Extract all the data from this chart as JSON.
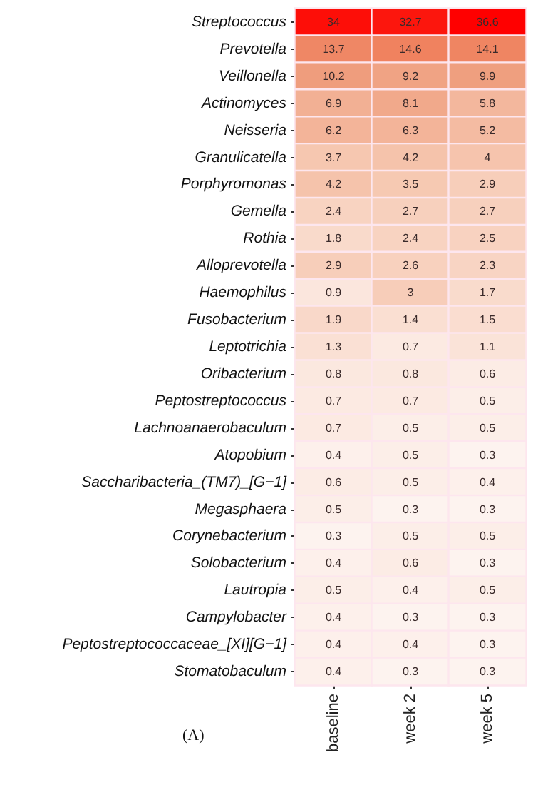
{
  "chart_data": {
    "type": "heatmap",
    "categories": [
      "baseline",
      "week 2",
      "week 5"
    ],
    "y_categories": [
      "Streptococcus",
      "Prevotella",
      "Veillonella",
      "Actinomyces",
      "Neisseria",
      "Granulicatella",
      "Porphyromonas",
      "Gemella",
      "Rothia",
      "Alloprevotella",
      "Haemophilus",
      "Fusobacterium",
      "Leptotrichia",
      "Oribacterium",
      "Peptostreptococcus",
      "Lachnoanaerobaculum",
      "Atopobium",
      "Saccharibacteria_(TM7)_[G−1]",
      "Megasphaera",
      "Corynebacterium",
      "Solobacterium",
      "Lautropia",
      "Campylobacter",
      "Peptostreptococcaceae_[XI][G−1]",
      "Stomatobaculum"
    ],
    "cells": [
      [
        34,
        32.7,
        36.6
      ],
      [
        13.7,
        14.6,
        14.1
      ],
      [
        10.2,
        9.2,
        9.9
      ],
      [
        6.9,
        8.1,
        5.8
      ],
      [
        6.2,
        6.3,
        5.2
      ],
      [
        3.7,
        4.2,
        4
      ],
      [
        4.2,
        3.5,
        2.9
      ],
      [
        2.4,
        2.7,
        2.7
      ],
      [
        1.8,
        2.4,
        2.5
      ],
      [
        2.9,
        2.6,
        2.3
      ],
      [
        0.9,
        3,
        1.7
      ],
      [
        1.9,
        1.4,
        1.5
      ],
      [
        1.3,
        0.7,
        1.1
      ],
      [
        0.8,
        0.8,
        0.6
      ],
      [
        0.7,
        0.7,
        0.5
      ],
      [
        0.7,
        0.5,
        0.5
      ],
      [
        0.4,
        0.5,
        0.3
      ],
      [
        0.6,
        0.5,
        0.4
      ],
      [
        0.5,
        0.3,
        0.3
      ],
      [
        0.3,
        0.5,
        0.5
      ],
      [
        0.4,
        0.6,
        0.3
      ],
      [
        0.5,
        0.4,
        0.5
      ],
      [
        0.4,
        0.3,
        0.3
      ],
      [
        0.4,
        0.4,
        0.3
      ],
      [
        0.4,
        0.3,
        0.3
      ]
    ],
    "data_labels": true,
    "annotations": [
      "(A)"
    ]
  }
}
